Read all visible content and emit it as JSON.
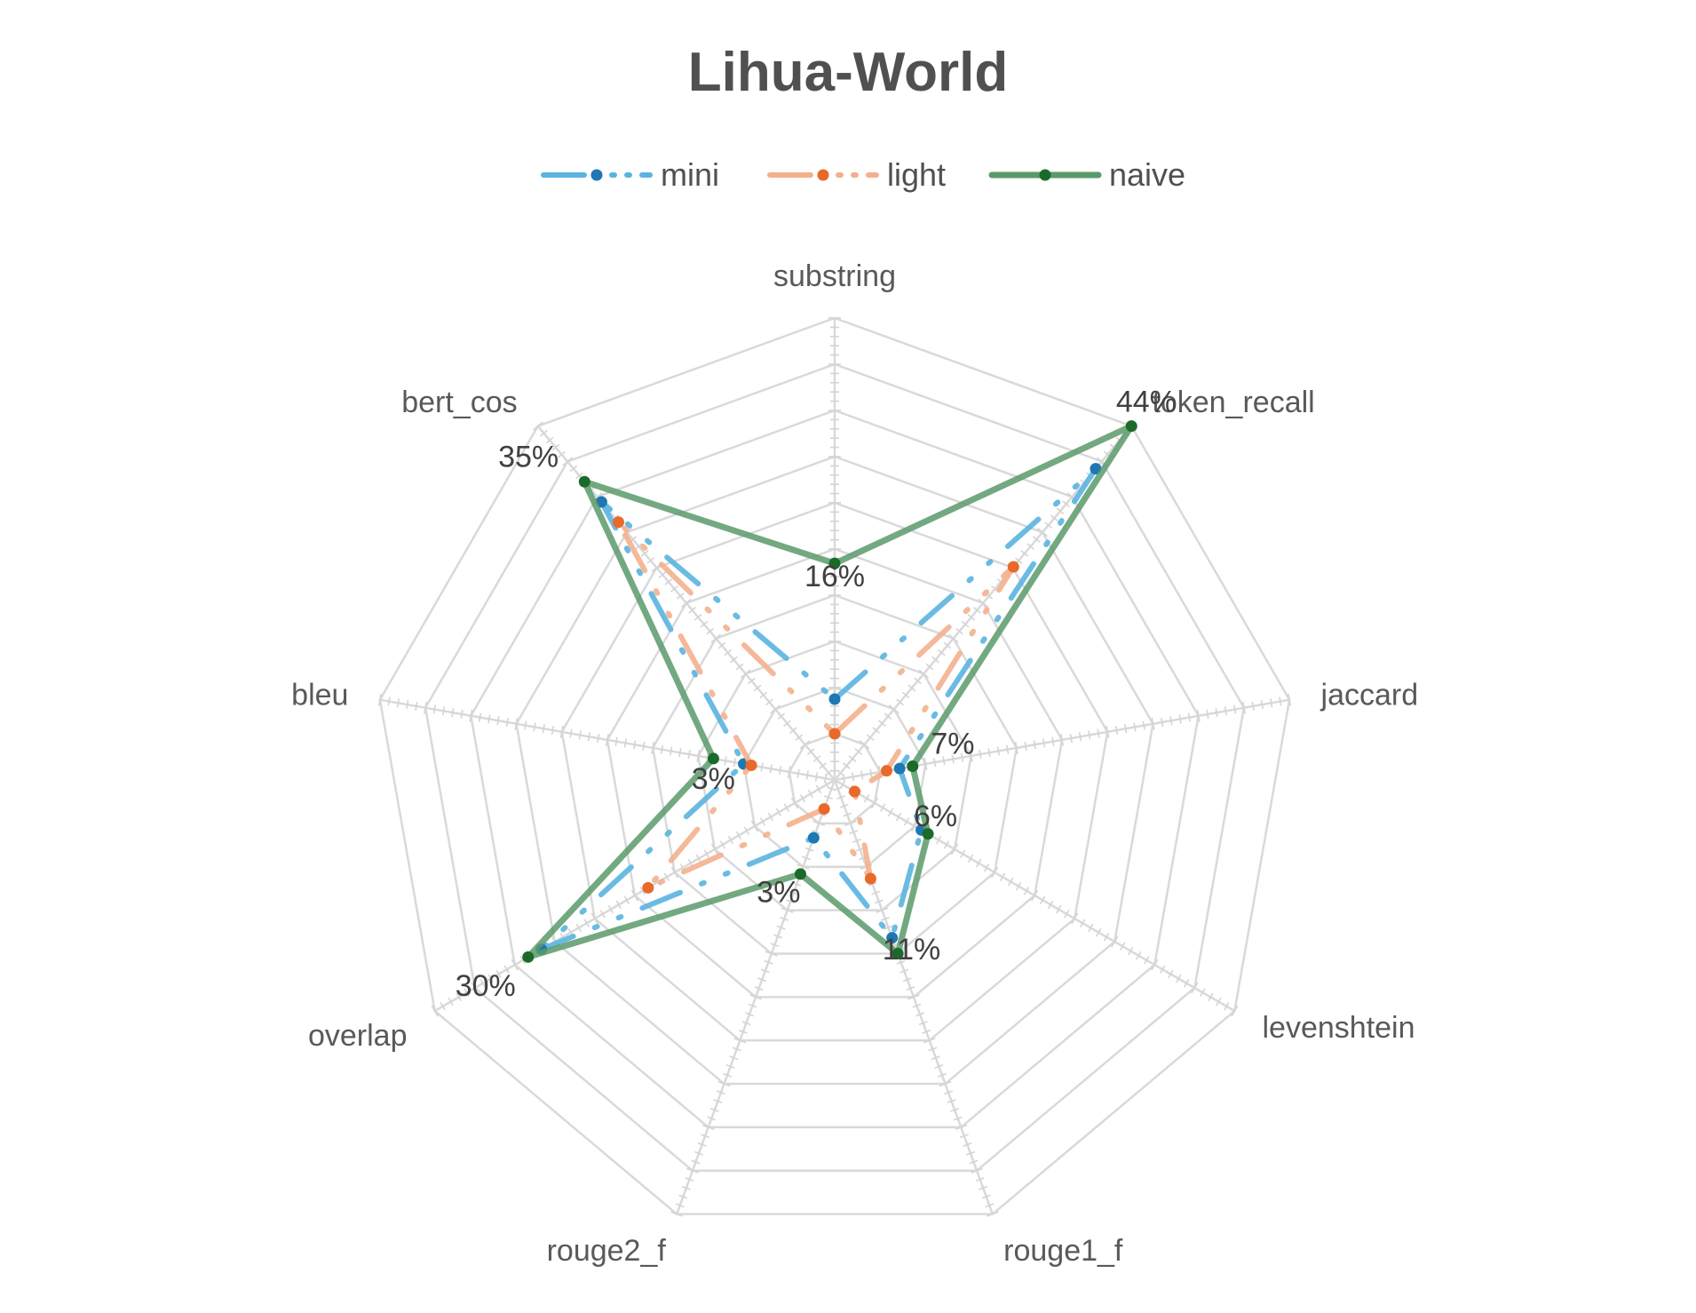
{
  "chart_data": {
    "type": "radar",
    "title": "Lihua-World",
    "legend_position": "top",
    "grid": true,
    "axes": [
      {
        "name": "substring",
        "max_label": "16%",
        "max": 16
      },
      {
        "name": "token_recall",
        "max_label": "44%",
        "max": 44
      },
      {
        "name": "jaccard",
        "max_label": "7%",
        "max": 7
      },
      {
        "name": "levenshtein",
        "max_label": "6%",
        "max": 6
      },
      {
        "name": "rouge1_f",
        "max_label": "11%",
        "max": 11
      },
      {
        "name": "rouge2_f",
        "max_label": "3%",
        "max": 3
      },
      {
        "name": "overlap",
        "max_label": "30%",
        "max": 30
      },
      {
        "name": "bleu",
        "max_label": "3%",
        "max": 3
      },
      {
        "name": "bert_cos",
        "max_label": "35%",
        "max": 35
      }
    ],
    "series": [
      {
        "name": "mini",
        "color": "#1f77b4",
        "line_color": "#5ab4e0",
        "dash": "long-dash-dot",
        "values": [
          2.8,
          38.7,
          1.0,
          1.3,
          4.0,
          0.4,
          22.0,
          0.6,
          27.5
        ]
      },
      {
        "name": "light",
        "color": "#e8692a",
        "line_color": "#f4b08e",
        "dash": "long-dash-dot",
        "values": [
          1.6,
          26.5,
          0.8,
          0.3,
          2.5,
          0.2,
          14.0,
          0.55,
          25.5
        ]
      },
      {
        "name": "naive",
        "color": "#1a6b2a",
        "line_color": "#5a9a6a",
        "dash": "solid",
        "values": [
          7.5,
          44.0,
          1.2,
          1.4,
          4.4,
          0.65,
          23.0,
          0.8,
          29.5
        ]
      }
    ]
  }
}
